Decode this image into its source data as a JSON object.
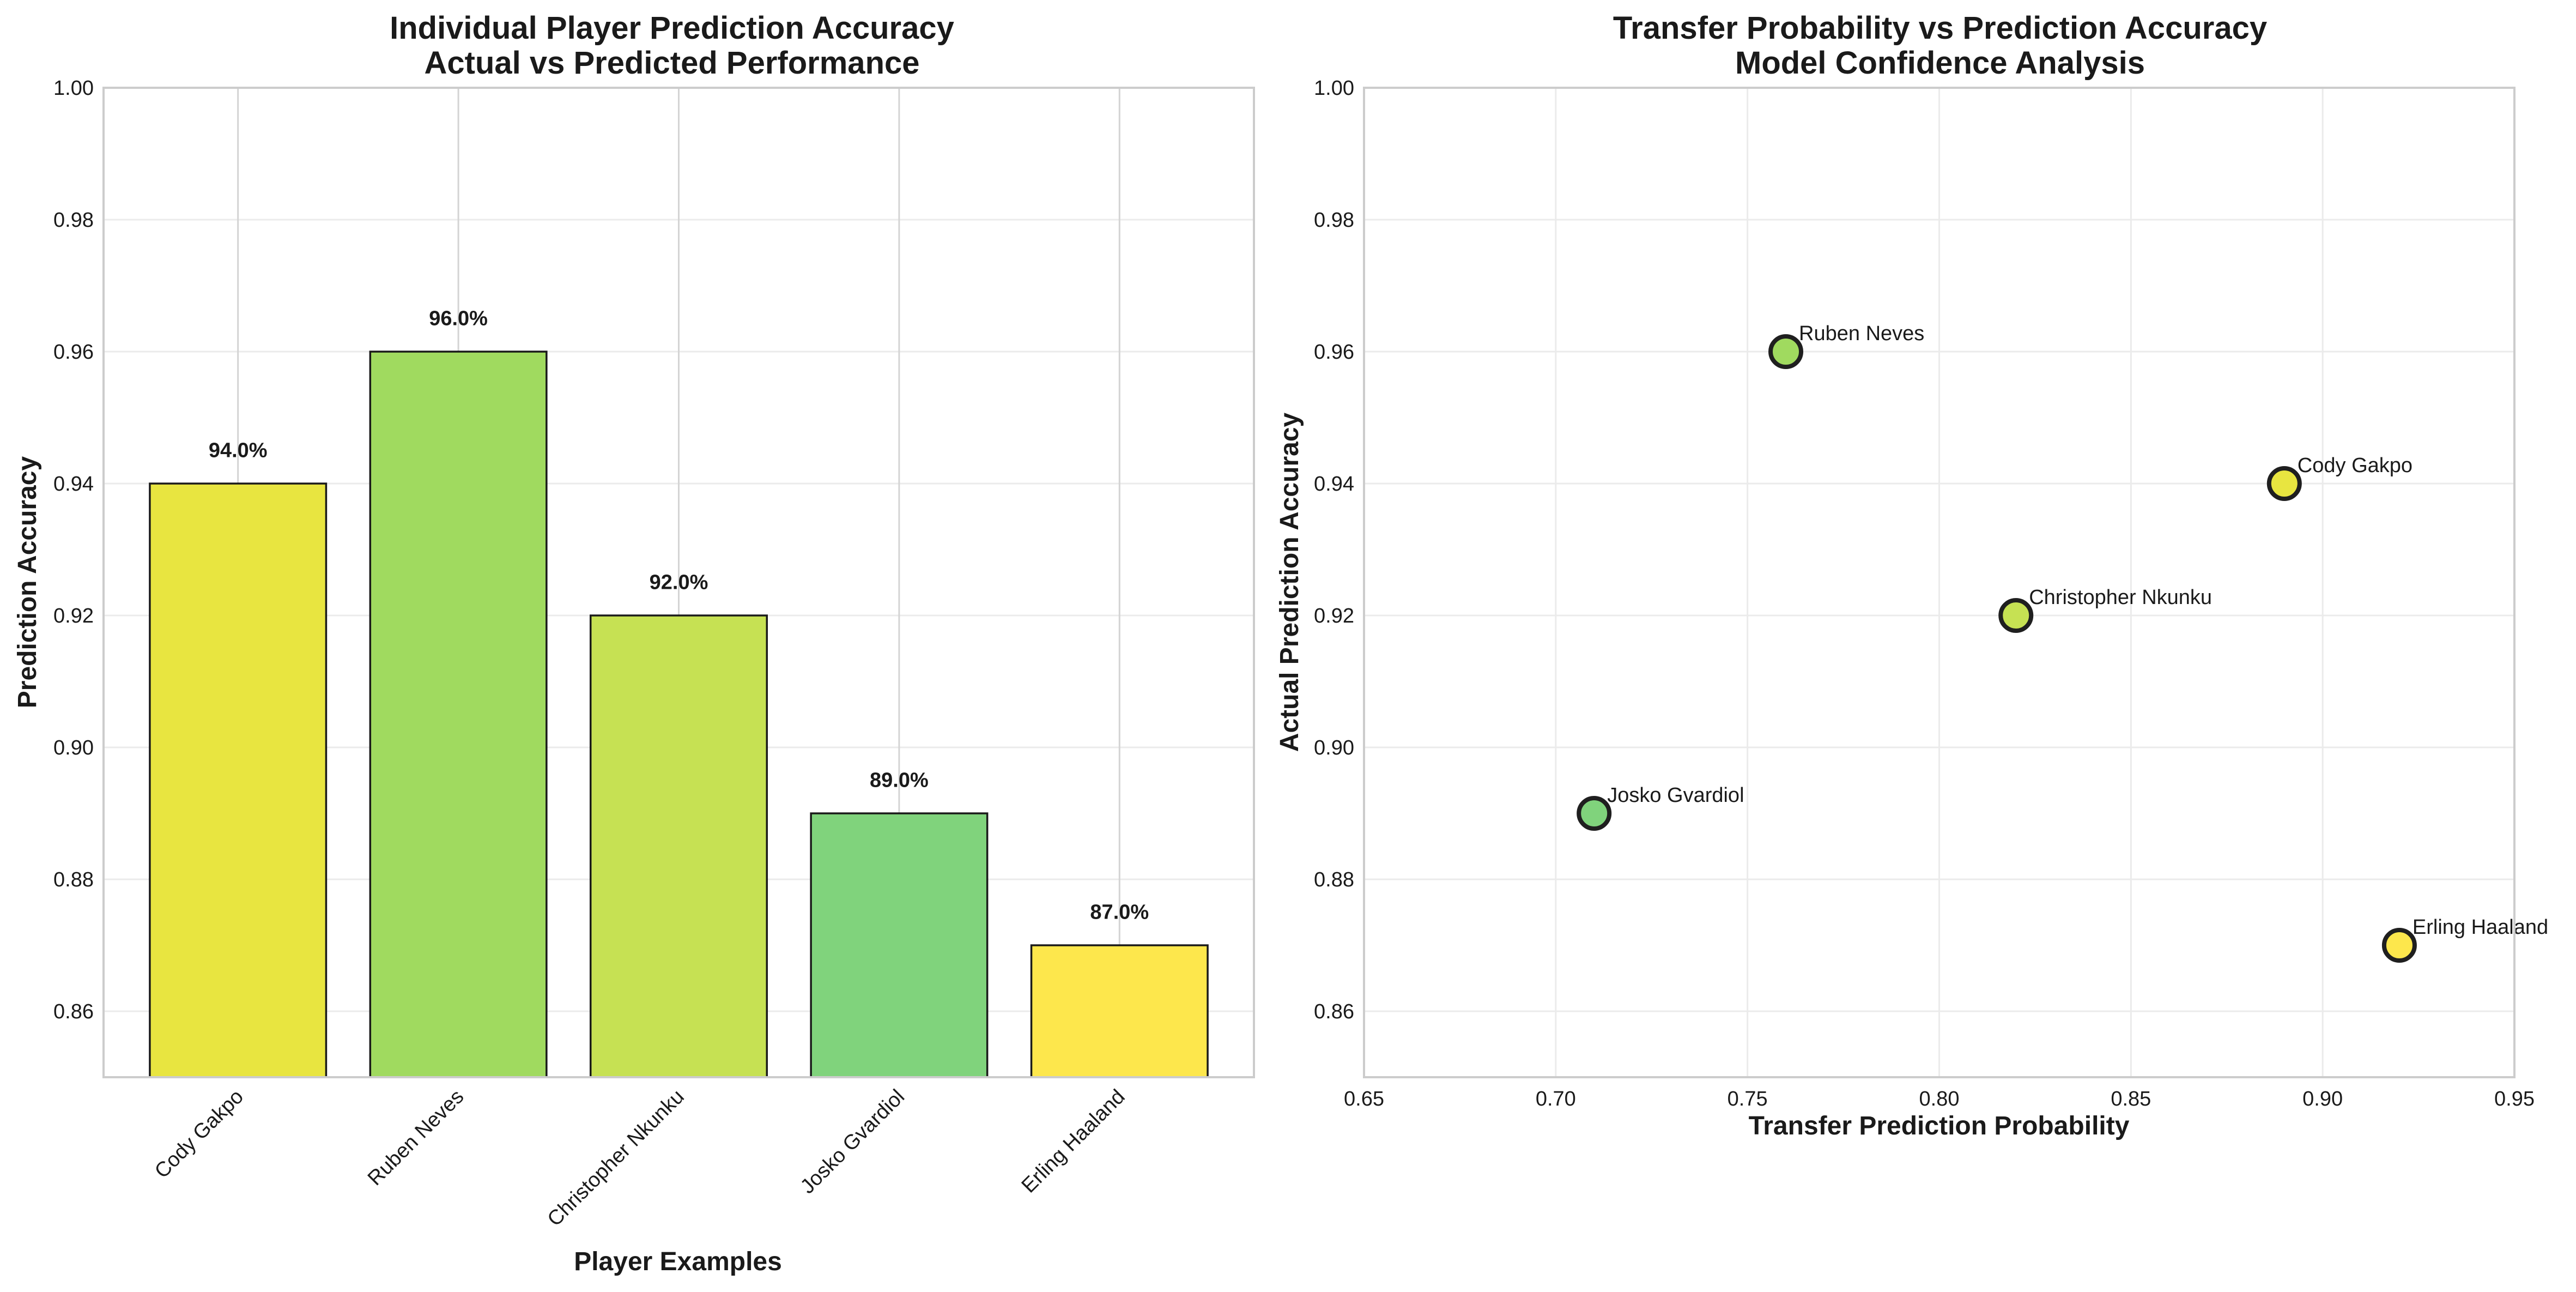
{
  "charts": [
    {
      "title_line1": "Individual Player Prediction Accuracy",
      "title_line2": "Actual vs Predicted Performance",
      "xlabel": "Player Examples",
      "ylabel": "Prediction Accuracy"
    },
    {
      "title_line1": "Transfer Probability vs Prediction Accuracy",
      "title_line2": "Model Confidence Analysis",
      "xlabel": "Transfer Prediction Probability",
      "ylabel": "Actual Prediction Accuracy"
    }
  ],
  "chart_data": [
    {
      "type": "bar",
      "title": "Individual Player Prediction Accuracy\nActual vs Predicted Performance",
      "xlabel": "Player Examples",
      "ylabel": "Prediction Accuracy",
      "categories": [
        "Cody Gakpo",
        "Ruben Neves",
        "Christopher Nkunku",
        "Josko Gvardiol",
        "Erling Haaland"
      ],
      "values": [
        0.94,
        0.96,
        0.92,
        0.89,
        0.87
      ],
      "data_labels": [
        "94.0%",
        "96.0%",
        "92.0%",
        "89.0%",
        "87.0%"
      ],
      "colors": [
        "#e8e540",
        "#a0da5f",
        "#c6e153",
        "#80d37c",
        "#fde74c"
      ],
      "ylim": [
        0.85,
        1.0
      ],
      "yticks": [
        0.86,
        0.88,
        0.9,
        0.92,
        0.94,
        0.96,
        0.98,
        1.0
      ],
      "ytick_labels": [
        "0.86",
        "0.88",
        "0.90",
        "0.92",
        "0.94",
        "0.96",
        "0.98",
        "1.00"
      ],
      "grid": true,
      "legend": "none"
    },
    {
      "type": "scatter",
      "title": "Transfer Probability vs Prediction Accuracy\nModel Confidence Analysis",
      "xlabel": "Transfer Prediction Probability",
      "ylabel": "Actual Prediction Accuracy",
      "points": [
        {
          "label": "Cody Gakpo",
          "x": 0.89,
          "y": 0.94,
          "color": "#e8e540"
        },
        {
          "label": "Ruben Neves",
          "x": 0.76,
          "y": 0.96,
          "color": "#a0da5f"
        },
        {
          "label": "Christopher Nkunku",
          "x": 0.82,
          "y": 0.92,
          "color": "#c6e153"
        },
        {
          "label": "Josko Gvardiol",
          "x": 0.71,
          "y": 0.89,
          "color": "#80d37c"
        },
        {
          "label": "Erling Haaland",
          "x": 0.92,
          "y": 0.87,
          "color": "#fde74c"
        }
      ],
      "xlim": [
        0.65,
        0.95
      ],
      "ylim": [
        0.85,
        1.0
      ],
      "xticks": [
        0.65,
        0.7,
        0.75,
        0.8,
        0.85,
        0.9,
        0.95
      ],
      "xtick_labels": [
        "0.65",
        "0.70",
        "0.75",
        "0.80",
        "0.85",
        "0.90",
        "0.95"
      ],
      "yticks": [
        0.86,
        0.88,
        0.9,
        0.92,
        0.94,
        0.96,
        0.98,
        1.0
      ],
      "ytick_labels": [
        "0.86",
        "0.88",
        "0.90",
        "0.92",
        "0.94",
        "0.96",
        "0.98",
        "1.00"
      ],
      "grid": true,
      "legend": "none"
    }
  ]
}
